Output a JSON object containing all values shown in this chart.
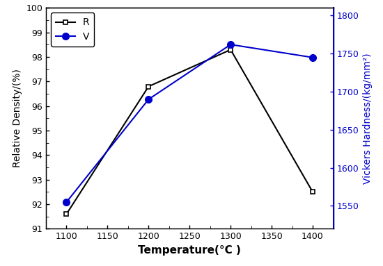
{
  "temp": [
    1100,
    1200,
    1300,
    1400
  ],
  "density": [
    91.6,
    96.8,
    98.3,
    92.5
  ],
  "hardness": [
    1555,
    1690,
    1762,
    1745
  ],
  "density_label": "R",
  "hardness_label": "V",
  "xlabel": "Temperature(°C )",
  "ylabel_left": "Relative Density/(%)",
  "ylabel_right": "Vickers Hardness/(kg/mm²)",
  "xlim": [
    1075,
    1425
  ],
  "ylim_left": [
    91,
    100
  ],
  "ylim_right": [
    1520,
    1810
  ],
  "xticks": [
    1100,
    1150,
    1200,
    1250,
    1300,
    1350,
    1400
  ],
  "yticks_left": [
    91,
    92,
    93,
    94,
    95,
    96,
    97,
    98,
    99,
    100
  ],
  "yticks_right": [
    1550,
    1600,
    1650,
    1700,
    1750,
    1800
  ],
  "color_density": "#000000",
  "color_hardness": "#0000cc",
  "line_width": 1.5,
  "marker_density": "s",
  "marker_hardness": "o",
  "marker_size_density": 5,
  "marker_size_hardness": 7,
  "legend_loc": "upper left",
  "background_color": "#ffffff"
}
